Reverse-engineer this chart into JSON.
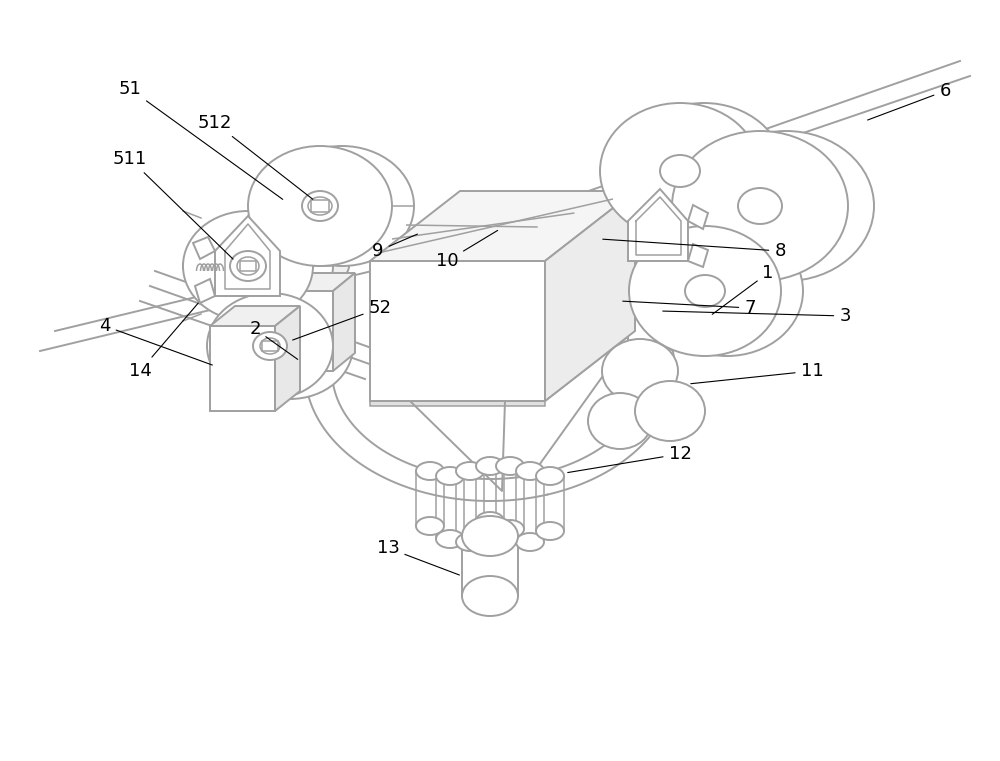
{
  "bg_color": "#ffffff",
  "lc": "#a0a0a0",
  "lw": 1.4,
  "lw2": 1.1,
  "fs": 13
}
